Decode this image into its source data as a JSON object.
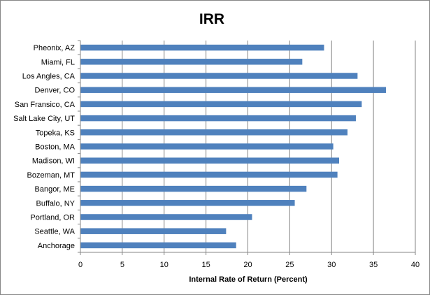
{
  "chart_data": {
    "type": "bar",
    "orientation": "horizontal",
    "title": "IRR",
    "xlabel": "Internal Rate of Return (Percent)",
    "ylabel": "",
    "xlim": [
      0,
      40
    ],
    "x_ticks": [
      "0",
      "5",
      "10",
      "15",
      "20",
      "25",
      "30",
      "35",
      "40"
    ],
    "grid": "vertical major gridlines",
    "legend": "none",
    "bar_color": "#4f81bd",
    "categories": [
      "Pheonix, AZ",
      "Miami, FL",
      "Los Angles, CA",
      "Denver, CO",
      "San Fransico, CA",
      "Salt Lake City, UT",
      "Topeka, KS",
      "Boston, MA",
      "Madison, WI",
      "Bozeman, MT",
      "Bangor, ME",
      "Buffalo, NY",
      "Portland, OR",
      "Seattle, WA",
      "Anchorage"
    ],
    "values": [
      29.1,
      26.5,
      33.1,
      36.5,
      33.6,
      32.9,
      31.9,
      30.2,
      30.9,
      30.7,
      27.0,
      25.6,
      20.5,
      17.4,
      18.6
    ]
  }
}
